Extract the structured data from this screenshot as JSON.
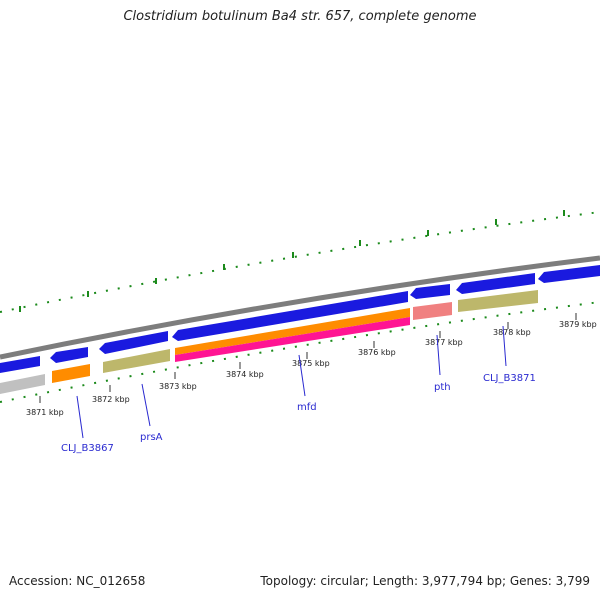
{
  "title": "Clostridium botulinum Ba4 str. 657, complete genome",
  "footer": {
    "accession": "Accession: NC_012658",
    "summary": "Topology: circular; Length: 3,977,794 bp; Genes: 3,799"
  },
  "colors": {
    "backbone": "#888888",
    "cds": "#1a1adf",
    "gene_khaki": "#bdb76b",
    "gene_orange": "#ff8c00",
    "gene_salmon": "#f08080",
    "gene_magenta": "#ff1493",
    "gene_grey": "#c0c0c0",
    "tick_green": "#1b8a1b",
    "label_blue": "#2a2ad0"
  },
  "kbp_labels": [
    "3871 kbp",
    "3872 kbp",
    "3873 kbp",
    "3874 kbp",
    "3875 kbp",
    "3876 kbp",
    "3877 kbp",
    "3878 kbp",
    "3879 kbp"
  ],
  "gene_labels": [
    "CLJ_B3867",
    "prsA",
    "mfd",
    "pth",
    "CLJ_B3871"
  ]
}
